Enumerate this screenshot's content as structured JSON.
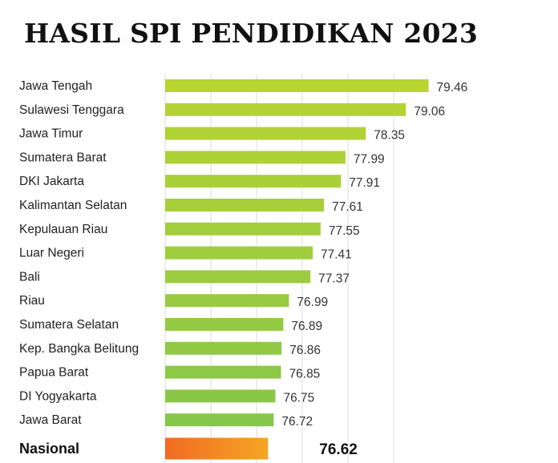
{
  "chart_data": {
    "type": "bar",
    "orientation": "horizontal",
    "title": "HASIL SPI PENDIDIKAN 2023",
    "categories": [
      "Jawa Tengah",
      "Sulawesi Tenggara",
      "Jawa Timur",
      "Sumatera Barat",
      "DKI Jakarta",
      "Kalimantan Selatan",
      "Kepulauan Riau",
      "Luar Negeri",
      "Bali",
      "Riau",
      "Sumatera Selatan",
      "Kep. Bangka Belitung",
      "Papua Barat",
      "DI Yogyakarta",
      "Jawa Barat"
    ],
    "values": [
      79.46,
      79.06,
      78.35,
      77.99,
      77.91,
      77.61,
      77.55,
      77.41,
      77.37,
      76.99,
      76.89,
      76.86,
      76.85,
      76.75,
      76.72
    ],
    "value_labels": [
      "79.46",
      "79.06",
      "78.35",
      "77.99",
      "77.91",
      "77.61",
      "77.55",
      "77.41",
      "77.37",
      "76.99",
      "76.89",
      "76.86",
      "76.85",
      "76.75",
      "76.72"
    ],
    "national": {
      "label": "Nasional",
      "value": 76.62,
      "value_label": "76.62"
    },
    "grid": true,
    "legend": false,
    "colors": {
      "bar_top": "#b8d431",
      "bar_bottom": "#86c64a",
      "national_start": "#f26a22",
      "national_end": "#f5a623",
      "grid": "#dddddd"
    }
  }
}
